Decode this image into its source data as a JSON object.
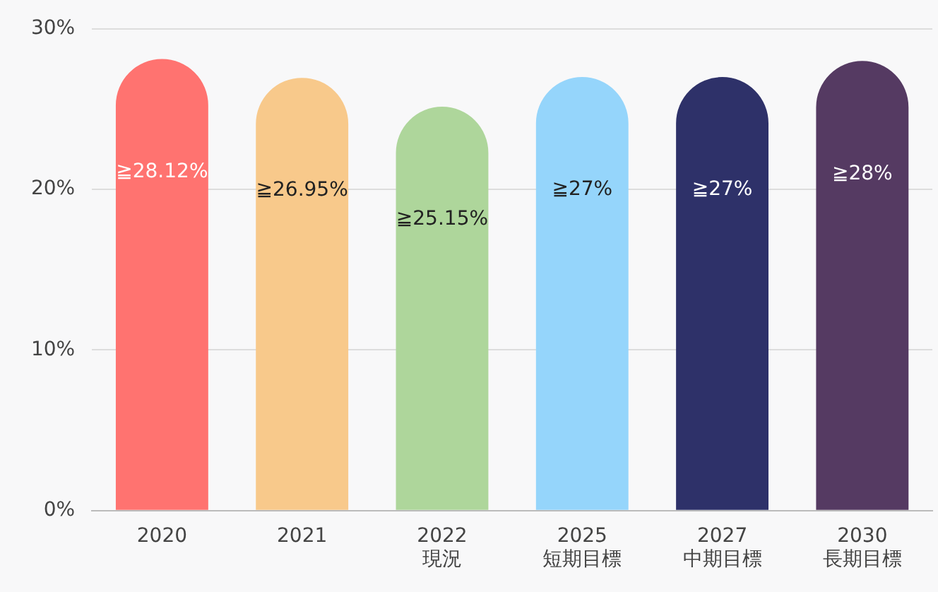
{
  "chart_data": {
    "type": "bar",
    "categories": [
      "2020",
      "2021",
      "2022\n現況",
      "2025\n短期目標",
      "2027\n中期目標",
      "2030\n長期目標"
    ],
    "values": [
      28.12,
      26.95,
      25.15,
      27,
      27,
      28
    ],
    "colors": [
      "#ff7370",
      "#f8c98b",
      "#aed69b",
      "#95d5fb",
      "#2e3169",
      "#553a62"
    ],
    "value_labels": [
      "≧28.12%",
      "≧26.95%",
      "≧25.15%",
      "≧27%",
      "≧27%",
      "≧28%"
    ],
    "ylim": [
      0,
      30
    ],
    "yticks": [
      {
        "value": 0,
        "label": "0%"
      },
      {
        "value": 10,
        "label": "10%"
      },
      {
        "value": 20,
        "label": "20%"
      },
      {
        "value": 30,
        "label": "30%"
      }
    ],
    "grid": "y",
    "legend": false
  }
}
